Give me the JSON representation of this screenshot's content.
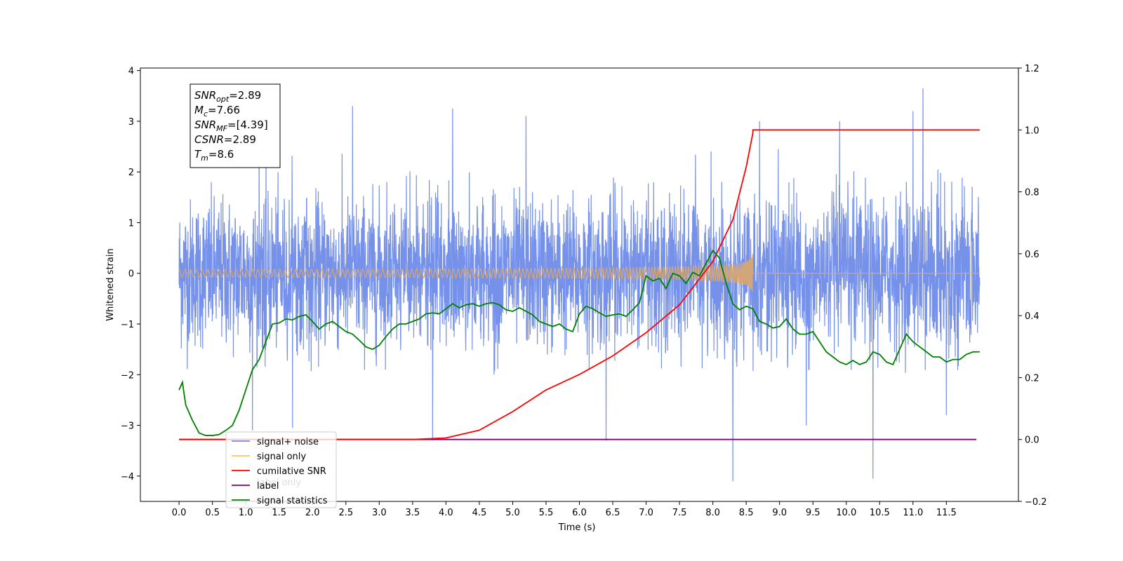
{
  "chart_data": {
    "type": "line",
    "title": "",
    "xlabel": "Time (s)",
    "ylabel": "Whitened strain",
    "xlim": [
      -0.58,
      12.58
    ],
    "ylim": [
      -4.5,
      4.05
    ],
    "y2lim": [
      -0.2,
      1.2
    ],
    "grid": false,
    "x_ticks": [
      0.0,
      0.5,
      1.0,
      1.5,
      2.0,
      2.5,
      3.0,
      3.5,
      4.0,
      4.5,
      5.0,
      5.5,
      6.0,
      6.5,
      7.0,
      7.5,
      8.0,
      8.5,
      9.0,
      9.5,
      10.0,
      10.5,
      11.0,
      11.5
    ],
    "x_tick_labels": [
      "0.0",
      "0.5",
      "1.0",
      "1.5",
      "2.0",
      "2.5",
      "3.0",
      "3.5",
      "4.0",
      "4.5",
      "5.0",
      "5.5",
      "6.0",
      "6.5",
      "7.0",
      "7.5",
      "8.0",
      "8.5",
      "9.0",
      "9.5",
      "10.0",
      "10.5",
      "11.0",
      "11.5"
    ],
    "y_ticks": [
      -4,
      -3,
      -2,
      -1,
      0,
      1,
      2,
      3,
      4
    ],
    "y_tick_labels": [
      "−4",
      "−3",
      "−2",
      "−1",
      "0",
      "1",
      "2",
      "3",
      "4"
    ],
    "y2_ticks": [
      -0.2,
      0.0,
      0.2,
      0.4,
      0.6,
      0.8,
      1.0,
      1.2
    ],
    "y2_tick_labels": [
      "−0.2",
      "0.0",
      "0.2",
      "0.4",
      "0.6",
      "0.8",
      "1.0",
      "1.2"
    ],
    "annotation": {
      "lines": [
        {
          "sym": "SNR",
          "sub": "opt",
          "val": "=2.89"
        },
        {
          "sym": "M",
          "sub": "c",
          "val": "=7.66"
        },
        {
          "sym": "SNR",
          "sub": "MF",
          "val": "=[4.39]"
        },
        {
          "sym": "CSNR",
          "sub": "",
          "val": "=2.89"
        },
        {
          "sym": "T",
          "sub": "m",
          "val": "=8.6"
        }
      ],
      "placement": "upper-left"
    },
    "legend": {
      "placement": "lower-left",
      "entries": [
        {
          "label": "signal+ noise",
          "color": "#6f8be8"
        },
        {
          "label": "signal only",
          "color": "#ffc266"
        },
        {
          "label": "cumilative SNR",
          "color": "#ff0000"
        },
        {
          "label": "label",
          "color": "#800080"
        },
        {
          "label": "signal statistics",
          "color": "#008000"
        }
      ],
      "hidden_text": "label only"
    },
    "series": [
      {
        "name": "signal+ noise",
        "axis": "left",
        "color": "#6f8be8",
        "note": "dense noise trace",
        "x_range": [
          0.0,
          12.0
        ],
        "typical_range": [
          -2.0,
          2.6
        ],
        "peaks": [
          {
            "x": 1.2,
            "y": 3.2
          },
          {
            "x": 2.6,
            "y": 3.3
          },
          {
            "x": 4.1,
            "y": 3.25
          },
          {
            "x": 5.2,
            "y": 3.1
          },
          {
            "x": 8.7,
            "y": 3.0
          },
          {
            "x": 9.9,
            "y": 3.0
          },
          {
            "x": 11.0,
            "y": 3.2
          },
          {
            "x": 11.15,
            "y": 3.65
          },
          {
            "x": 3.8,
            "y": -3.3
          },
          {
            "x": 6.4,
            "y": -3.3
          },
          {
            "x": 8.3,
            "y": -4.1
          },
          {
            "x": 10.4,
            "y": -4.05
          },
          {
            "x": 1.1,
            "y": -3.1
          },
          {
            "x": 1.7,
            "y": -3.05
          },
          {
            "x": 9.4,
            "y": -3.0
          },
          {
            "x": 11.5,
            "y": -2.8
          }
        ]
      },
      {
        "name": "signal only",
        "axis": "left",
        "color": "#d2a679",
        "note": "chirp with growing amplitude ending at merger",
        "x_range": [
          0.0,
          12.0
        ],
        "merger_time": 8.6,
        "peak_amplitude": 0.4
      },
      {
        "name": "cumilative SNR",
        "axis": "right",
        "color": "#ff0000",
        "x": [
          0.0,
          3.5,
          4.0,
          4.5,
          5.0,
          5.5,
          6.0,
          6.5,
          7.0,
          7.5,
          8.0,
          8.3,
          8.5,
          8.6,
          8.6,
          12.0
        ],
        "y": [
          0.0,
          0.0,
          0.005,
          0.03,
          0.09,
          0.16,
          0.21,
          0.27,
          0.345,
          0.435,
          0.575,
          0.71,
          0.88,
          0.99,
          1.0,
          1.0
        ]
      },
      {
        "name": "label",
        "axis": "right",
        "color": "#800080",
        "x": [
          0.0,
          11.95
        ],
        "y": [
          0.0,
          0.0
        ]
      },
      {
        "name": "signal statistics",
        "axis": "left",
        "color": "#008000",
        "x": [
          0.0,
          0.05,
          0.1,
          0.2,
          0.3,
          0.4,
          0.5,
          0.6,
          0.7,
          0.8,
          0.9,
          1.0,
          1.1,
          1.2,
          1.3,
          1.4,
          1.5,
          1.6,
          1.7,
          1.8,
          1.9,
          2.0,
          2.1,
          2.2,
          2.3,
          2.4,
          2.5,
          2.6,
          2.7,
          2.8,
          2.9,
          3.0,
          3.1,
          3.2,
          3.3,
          3.4,
          3.5,
          3.6,
          3.7,
          3.8,
          3.9,
          4.0,
          4.1,
          4.2,
          4.3,
          4.4,
          4.5,
          4.6,
          4.7,
          4.8,
          4.9,
          5.0,
          5.1,
          5.2,
          5.3,
          5.4,
          5.5,
          5.6,
          5.7,
          5.8,
          5.9,
          6.0,
          6.1,
          6.2,
          6.3,
          6.4,
          6.5,
          6.6,
          6.7,
          6.8,
          6.9,
          7.0,
          7.1,
          7.2,
          7.3,
          7.4,
          7.5,
          7.6,
          7.7,
          7.8,
          7.9,
          8.0,
          8.1,
          8.2,
          8.3,
          8.4,
          8.5,
          8.6,
          8.7,
          8.8,
          8.9,
          9.0,
          9.1,
          9.2,
          9.3,
          9.4,
          9.5,
          9.6,
          9.7,
          9.8,
          9.9,
          10.0,
          10.1,
          10.2,
          10.3,
          10.4,
          10.5,
          10.6,
          10.7,
          10.8,
          10.9,
          11.0,
          11.1,
          11.2,
          11.3,
          11.4,
          11.5,
          11.6,
          11.7,
          11.8,
          11.9,
          12.0
        ],
        "y": [
          -2.3,
          -2.15,
          -2.6,
          -2.9,
          -3.15,
          -3.2,
          -3.2,
          -3.18,
          -3.1,
          -3.0,
          -2.7,
          -2.3,
          -1.9,
          -1.7,
          -1.35,
          -1.0,
          -0.98,
          -0.9,
          -0.92,
          -0.85,
          -0.82,
          -0.95,
          -1.1,
          -1.0,
          -0.95,
          -1.05,
          -1.15,
          -1.2,
          -1.32,
          -1.45,
          -1.5,
          -1.42,
          -1.25,
          -1.1,
          -1.0,
          -1.0,
          -0.95,
          -0.9,
          -0.8,
          -0.78,
          -0.8,
          -0.7,
          -0.6,
          -0.68,
          -0.62,
          -0.6,
          -0.65,
          -0.6,
          -0.58,
          -0.62,
          -0.72,
          -0.75,
          -0.68,
          -0.75,
          -0.82,
          -0.95,
          -1.0,
          -1.05,
          -1.0,
          -1.1,
          -1.15,
          -0.8,
          -0.65,
          -0.7,
          -0.78,
          -0.85,
          -0.82,
          -0.8,
          -0.85,
          -0.72,
          -0.58,
          -0.05,
          -0.15,
          -0.1,
          -0.3,
          0.0,
          -0.05,
          -0.2,
          0.02,
          -0.05,
          0.2,
          0.45,
          0.3,
          -0.2,
          -0.6,
          -0.72,
          -0.65,
          -0.7,
          -0.95,
          -1.0,
          -1.08,
          -1.05,
          -0.9,
          -1.1,
          -1.2,
          -1.2,
          -1.15,
          -1.35,
          -1.55,
          -1.65,
          -1.75,
          -1.8,
          -1.72,
          -1.8,
          -1.75,
          -1.55,
          -1.6,
          -1.75,
          -1.8,
          -1.5,
          -1.2,
          -1.35,
          -1.45,
          -1.55,
          -1.65,
          -1.65,
          -1.75,
          -1.7,
          -1.7,
          -1.6,
          -1.55,
          -1.55
        ]
      }
    ]
  }
}
